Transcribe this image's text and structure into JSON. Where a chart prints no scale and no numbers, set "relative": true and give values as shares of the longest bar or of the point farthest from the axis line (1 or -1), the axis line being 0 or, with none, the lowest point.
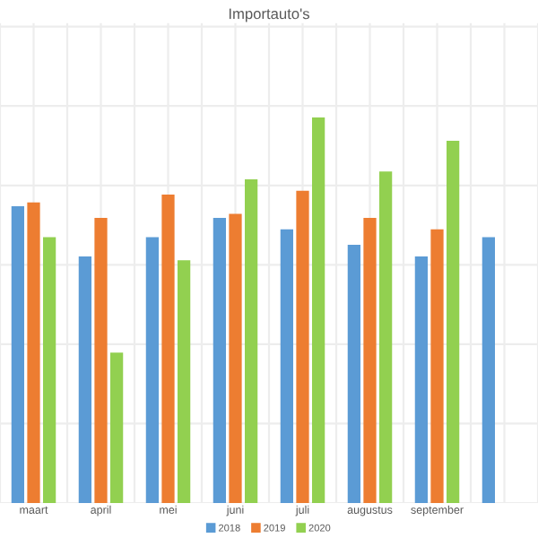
{
  "chart_data": {
    "type": "bar",
    "title": "Importauto's",
    "relative": true,
    "grid": true,
    "legend": "bottom",
    "categories": [
      "maart",
      "april",
      "mei",
      "juni",
      "juli",
      "augustus",
      "september",
      null
    ],
    "series": [
      {
        "name": "2018",
        "color": "#5b9bd5",
        "values": [
          0.77,
          0.64,
          0.69,
          0.74,
          0.71,
          0.67,
          0.64,
          0.69
        ]
      },
      {
        "name": "2019",
        "color": "#ed7d31",
        "values": [
          0.78,
          0.74,
          0.8,
          0.75,
          0.81,
          0.74,
          0.71,
          null
        ]
      },
      {
        "name": "2020",
        "color": "#92d050",
        "values": [
          0.69,
          0.39,
          0.63,
          0.84,
          1,
          0.86,
          0.94,
          null
        ]
      }
    ]
  }
}
